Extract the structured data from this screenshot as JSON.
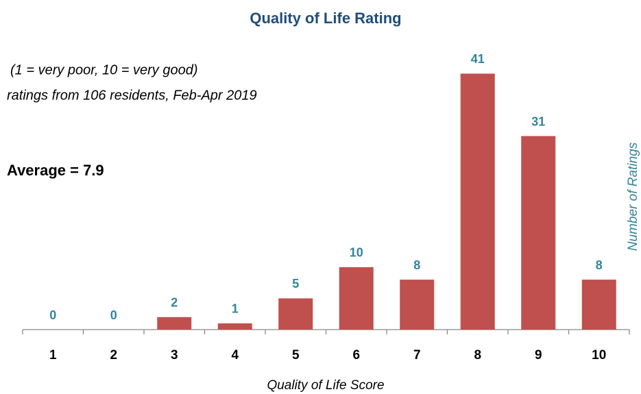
{
  "chart_data": {
    "type": "bar",
    "title": "Quality of Life Rating",
    "annotations": [
      "(1 = very poor, 10 = very good)",
      "ratings from 106 residents, Feb-Apr 2019",
      "Average = 7.9"
    ],
    "x_label": "Quality of Life Score",
    "y_label": "Number of Ratings",
    "categories": [
      "1",
      "2",
      "3",
      "4",
      "5",
      "6",
      "7",
      "8",
      "9",
      "10"
    ],
    "values": [
      0,
      0,
      2,
      1,
      5,
      10,
      8,
      41,
      31,
      8
    ],
    "color": "#c0504d",
    "label_color": "#31849b",
    "ylim": [
      0,
      45
    ]
  }
}
